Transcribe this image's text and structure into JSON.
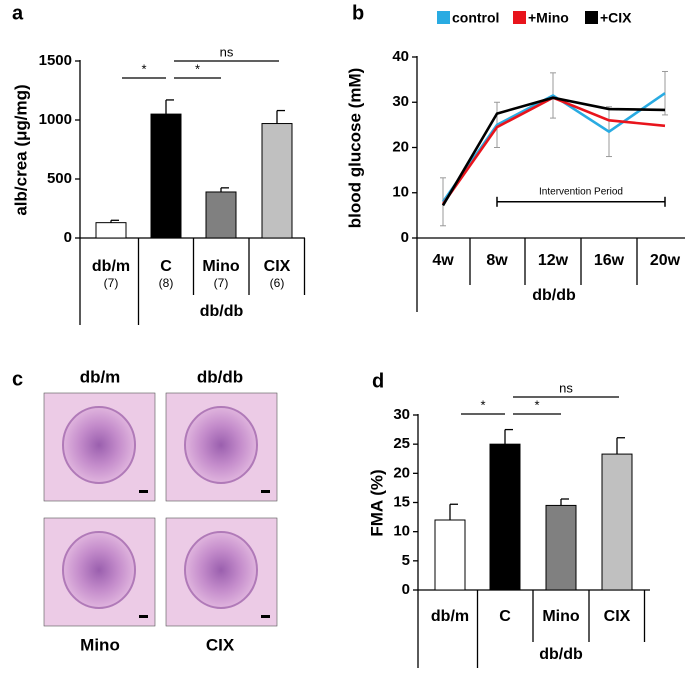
{
  "chart_data": [
    {
      "panel": "a",
      "type": "bar",
      "y_label": "alb/crea (μg/mg)",
      "categories": [
        "db/m",
        "C",
        "Mino",
        "CIX"
      ],
      "n_labels": [
        "(7)",
        "(8)",
        "(7)",
        "(6)"
      ],
      "group_label": "db/db",
      "values": [
        130,
        1050,
        390,
        970
      ],
      "errors": [
        20,
        120,
        35,
        110
      ],
      "colors": [
        "#ffffff",
        "#000000",
        "#808080",
        "#c0c0c0"
      ],
      "ylim": [
        0,
        1500
      ],
      "yticks": [
        0,
        500,
        1000,
        1500
      ],
      "annotations": [
        "*",
        "*",
        "ns"
      ]
    },
    {
      "panel": "b",
      "type": "line",
      "y_label": "blood glucose (mM)",
      "categories": [
        "4w",
        "8w",
        "12w",
        "16w",
        "20w"
      ],
      "group_label": "db/db",
      "series": [
        {
          "name": "control",
          "color": "#29abe2",
          "values": [
            8,
            25,
            31.5,
            23.5,
            32
          ],
          "errors": [
            5.3,
            5,
            5,
            5.5,
            4.8
          ]
        },
        {
          "name": "+Mino",
          "color": "#e8141c",
          "values": [
            7.5,
            24.5,
            31,
            26,
            24.8
          ]
        },
        {
          "name": "+CIX",
          "color": "#000000",
          "values": [
            7.2,
            27.5,
            31,
            28.5,
            28.3
          ]
        }
      ],
      "annotation": "Intervention Period",
      "ylim": [
        0,
        40
      ],
      "yticks": [
        0,
        10,
        20,
        30,
        40
      ]
    },
    {
      "panel": "d",
      "type": "bar",
      "y_label": "FMA (%)",
      "categories": [
        "db/m",
        "C",
        "Mino",
        "CIX"
      ],
      "group_label": "db/db",
      "values": [
        12,
        25,
        14.5,
        23.3
      ],
      "errors": [
        2.7,
        2.5,
        1.1,
        2.8
      ],
      "colors": [
        "#ffffff",
        "#000000",
        "#808080",
        "#c0c0c0"
      ],
      "ylim": [
        0,
        30
      ],
      "yticks": [
        0,
        5,
        10,
        15,
        20,
        25,
        30
      ],
      "annotations": [
        "*",
        "*",
        "ns"
      ]
    }
  ],
  "panel_c": {
    "panel": "c",
    "images": [
      {
        "label": "db/m"
      },
      {
        "label": "db/db"
      },
      {
        "label": "Mino"
      },
      {
        "label": "CIX"
      }
    ]
  }
}
